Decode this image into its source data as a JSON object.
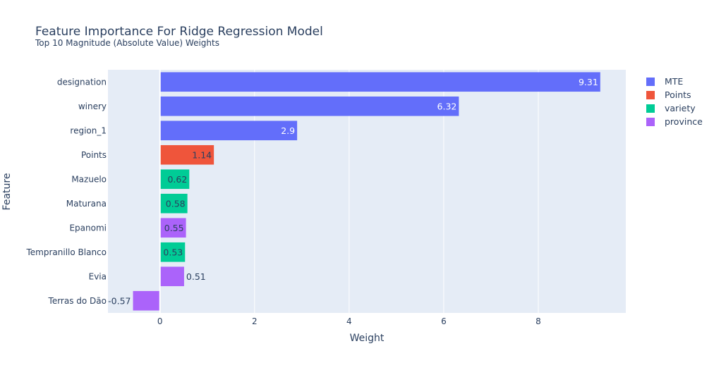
{
  "chart_data": {
    "type": "bar",
    "orientation": "horizontal",
    "title": "Feature Importance For Ridge Regression Model",
    "subtitle": "Top 10 Magnitude (Absolute Value) Weights",
    "xlabel": "Weight",
    "ylabel": "Feature",
    "xlim": [
      -1.1,
      9.85
    ],
    "xticks": [
      0,
      2,
      4,
      6,
      8
    ],
    "grid": true,
    "legend_position": "top-right",
    "categories": [
      "designation",
      "winery",
      "region_1",
      "Points",
      "Mazuelo",
      "Maturana",
      "Epanomi",
      "Tempranillo Blanco",
      "Evia",
      "Terras do Dão"
    ],
    "values": [
      9.31,
      6.32,
      2.9,
      1.14,
      0.62,
      0.58,
      0.55,
      0.53,
      0.51,
      -0.57
    ],
    "value_labels": [
      "9.31",
      "6.32",
      "2.9",
      "1.14",
      "0.62",
      "0.58",
      "0.55",
      "0.53",
      "0.51",
      "-0.57"
    ],
    "groups": [
      "MTE",
      "MTE",
      "MTE",
      "Points",
      "variety",
      "variety",
      "province",
      "variety",
      "province",
      "province"
    ],
    "series": [
      {
        "name": "MTE",
        "color": "#636efa"
      },
      {
        "name": "Points",
        "color": "#ef553b"
      },
      {
        "name": "variety",
        "color": "#00cc96"
      },
      {
        "name": "province",
        "color": "#ab63fa"
      }
    ]
  }
}
